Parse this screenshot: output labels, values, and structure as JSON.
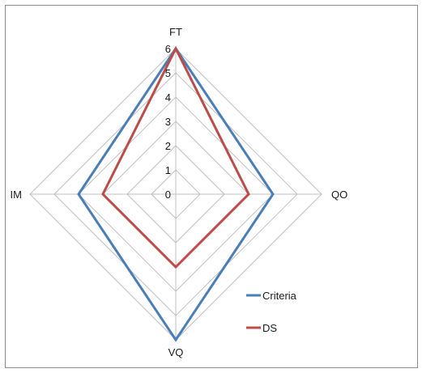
{
  "chart_data": {
    "type": "radar",
    "title": "",
    "axes": [
      "FT",
      "QO",
      "VQ",
      "IM"
    ],
    "scale": {
      "min": 0,
      "max": 6,
      "step": 1
    },
    "tick_labels": [
      "0",
      "1",
      "2",
      "3",
      "4",
      "5",
      "6"
    ],
    "grid": true,
    "legend_position": "bottom-right",
    "series": [
      {
        "name": "Criteria",
        "color": "#4a7ebb",
        "values": [
          6,
          4,
          6,
          4
        ]
      },
      {
        "name": "DS",
        "color": "#be4b48",
        "values": [
          6,
          3,
          3,
          3
        ]
      }
    ]
  }
}
